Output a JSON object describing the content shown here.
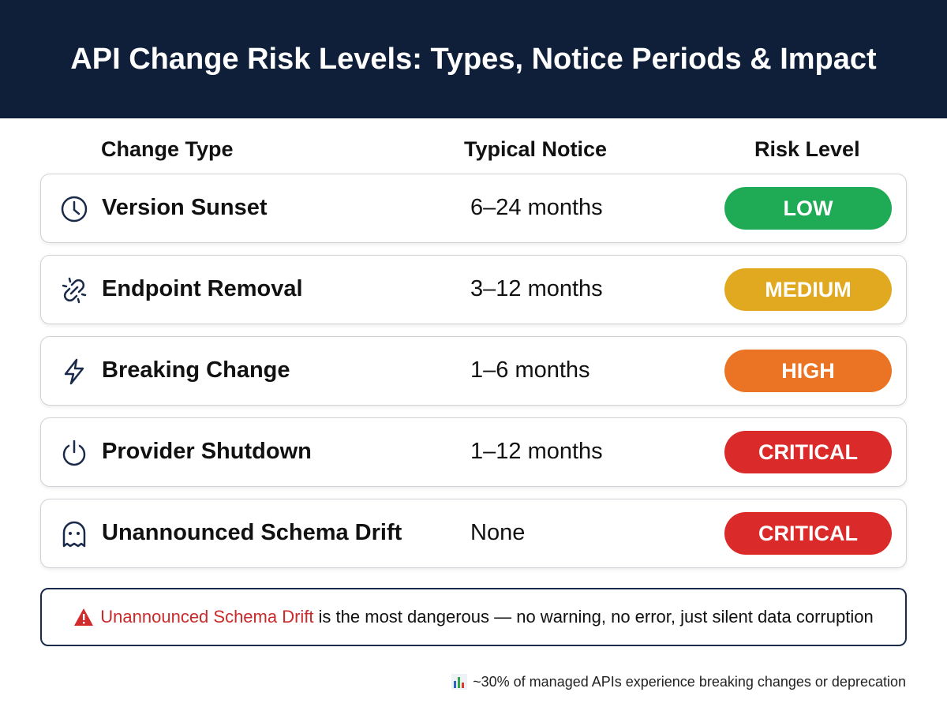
{
  "header": {
    "title": "API Change Risk Levels: Types, Notice Periods & Impact"
  },
  "table": {
    "columns": [
      "Change Type",
      "Typical Notice",
      "Risk Level"
    ],
    "rows": [
      {
        "type": "Version Sunset",
        "notice": "6–24 months",
        "risk": "LOW",
        "color": "#1faa55"
      },
      {
        "type": "Endpoint Removal",
        "notice": "3–12 months",
        "risk": "MEDIUM",
        "color": "#e0a91f"
      },
      {
        "type": "Breaking Change",
        "notice": "1–6 months",
        "risk": "HIGH",
        "color": "#ea7423"
      },
      {
        "type": "Provider Shutdown",
        "notice": "1–12 months",
        "risk": "CRITICAL",
        "color": "#db2a2a"
      },
      {
        "type": "Unannounced Schema Drift",
        "notice": "None",
        "risk": "CRITICAL",
        "color": "#db2a2a"
      }
    ]
  },
  "callout": {
    "highlight": "Unannounced Schema Drift",
    "text": "is the most dangerous — no warning, no error, just silent data corruption"
  },
  "footnote": "~30% of managed APIs experience breaking changes or deprecation"
}
